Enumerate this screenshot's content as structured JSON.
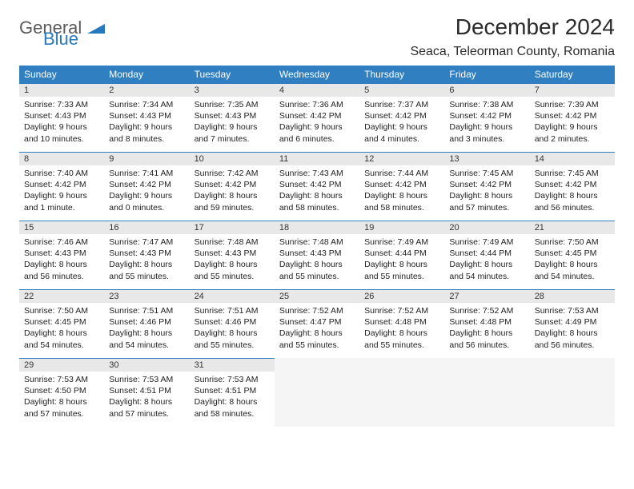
{
  "logo": {
    "part1": "General",
    "part2": "Blue"
  },
  "title": "December 2024",
  "location": "Seaca, Teleorman County, Romania",
  "colors": {
    "header_bg": "#2f7fc1",
    "header_text": "#ffffff",
    "daynum_bg": "#e8e8e8",
    "border": "#2f7fc1",
    "logo_gray": "#5a5a5a",
    "logo_blue": "#2779bd"
  },
  "weekdays": [
    "Sunday",
    "Monday",
    "Tuesday",
    "Wednesday",
    "Thursday",
    "Friday",
    "Saturday"
  ],
  "weeks": [
    [
      {
        "n": "1",
        "sr": "Sunrise: 7:33 AM",
        "ss": "Sunset: 4:43 PM",
        "dl": "Daylight: 9 hours and 10 minutes."
      },
      {
        "n": "2",
        "sr": "Sunrise: 7:34 AM",
        "ss": "Sunset: 4:43 PM",
        "dl": "Daylight: 9 hours and 8 minutes."
      },
      {
        "n": "3",
        "sr": "Sunrise: 7:35 AM",
        "ss": "Sunset: 4:43 PM",
        "dl": "Daylight: 9 hours and 7 minutes."
      },
      {
        "n": "4",
        "sr": "Sunrise: 7:36 AM",
        "ss": "Sunset: 4:42 PM",
        "dl": "Daylight: 9 hours and 6 minutes."
      },
      {
        "n": "5",
        "sr": "Sunrise: 7:37 AM",
        "ss": "Sunset: 4:42 PM",
        "dl": "Daylight: 9 hours and 4 minutes."
      },
      {
        "n": "6",
        "sr": "Sunrise: 7:38 AM",
        "ss": "Sunset: 4:42 PM",
        "dl": "Daylight: 9 hours and 3 minutes."
      },
      {
        "n": "7",
        "sr": "Sunrise: 7:39 AM",
        "ss": "Sunset: 4:42 PM",
        "dl": "Daylight: 9 hours and 2 minutes."
      }
    ],
    [
      {
        "n": "8",
        "sr": "Sunrise: 7:40 AM",
        "ss": "Sunset: 4:42 PM",
        "dl": "Daylight: 9 hours and 1 minute."
      },
      {
        "n": "9",
        "sr": "Sunrise: 7:41 AM",
        "ss": "Sunset: 4:42 PM",
        "dl": "Daylight: 9 hours and 0 minutes."
      },
      {
        "n": "10",
        "sr": "Sunrise: 7:42 AM",
        "ss": "Sunset: 4:42 PM",
        "dl": "Daylight: 8 hours and 59 minutes."
      },
      {
        "n": "11",
        "sr": "Sunrise: 7:43 AM",
        "ss": "Sunset: 4:42 PM",
        "dl": "Daylight: 8 hours and 58 minutes."
      },
      {
        "n": "12",
        "sr": "Sunrise: 7:44 AM",
        "ss": "Sunset: 4:42 PM",
        "dl": "Daylight: 8 hours and 58 minutes."
      },
      {
        "n": "13",
        "sr": "Sunrise: 7:45 AM",
        "ss": "Sunset: 4:42 PM",
        "dl": "Daylight: 8 hours and 57 minutes."
      },
      {
        "n": "14",
        "sr": "Sunrise: 7:45 AM",
        "ss": "Sunset: 4:42 PM",
        "dl": "Daylight: 8 hours and 56 minutes."
      }
    ],
    [
      {
        "n": "15",
        "sr": "Sunrise: 7:46 AM",
        "ss": "Sunset: 4:43 PM",
        "dl": "Daylight: 8 hours and 56 minutes."
      },
      {
        "n": "16",
        "sr": "Sunrise: 7:47 AM",
        "ss": "Sunset: 4:43 PM",
        "dl": "Daylight: 8 hours and 55 minutes."
      },
      {
        "n": "17",
        "sr": "Sunrise: 7:48 AM",
        "ss": "Sunset: 4:43 PM",
        "dl": "Daylight: 8 hours and 55 minutes."
      },
      {
        "n": "18",
        "sr": "Sunrise: 7:48 AM",
        "ss": "Sunset: 4:43 PM",
        "dl": "Daylight: 8 hours and 55 minutes."
      },
      {
        "n": "19",
        "sr": "Sunrise: 7:49 AM",
        "ss": "Sunset: 4:44 PM",
        "dl": "Daylight: 8 hours and 55 minutes."
      },
      {
        "n": "20",
        "sr": "Sunrise: 7:49 AM",
        "ss": "Sunset: 4:44 PM",
        "dl": "Daylight: 8 hours and 54 minutes."
      },
      {
        "n": "21",
        "sr": "Sunrise: 7:50 AM",
        "ss": "Sunset: 4:45 PM",
        "dl": "Daylight: 8 hours and 54 minutes."
      }
    ],
    [
      {
        "n": "22",
        "sr": "Sunrise: 7:50 AM",
        "ss": "Sunset: 4:45 PM",
        "dl": "Daylight: 8 hours and 54 minutes."
      },
      {
        "n": "23",
        "sr": "Sunrise: 7:51 AM",
        "ss": "Sunset: 4:46 PM",
        "dl": "Daylight: 8 hours and 54 minutes."
      },
      {
        "n": "24",
        "sr": "Sunrise: 7:51 AM",
        "ss": "Sunset: 4:46 PM",
        "dl": "Daylight: 8 hours and 55 minutes."
      },
      {
        "n": "25",
        "sr": "Sunrise: 7:52 AM",
        "ss": "Sunset: 4:47 PM",
        "dl": "Daylight: 8 hours and 55 minutes."
      },
      {
        "n": "26",
        "sr": "Sunrise: 7:52 AM",
        "ss": "Sunset: 4:48 PM",
        "dl": "Daylight: 8 hours and 55 minutes."
      },
      {
        "n": "27",
        "sr": "Sunrise: 7:52 AM",
        "ss": "Sunset: 4:48 PM",
        "dl": "Daylight: 8 hours and 56 minutes."
      },
      {
        "n": "28",
        "sr": "Sunrise: 7:53 AM",
        "ss": "Sunset: 4:49 PM",
        "dl": "Daylight: 8 hours and 56 minutes."
      }
    ],
    [
      {
        "n": "29",
        "sr": "Sunrise: 7:53 AM",
        "ss": "Sunset: 4:50 PM",
        "dl": "Daylight: 8 hours and 57 minutes."
      },
      {
        "n": "30",
        "sr": "Sunrise: 7:53 AM",
        "ss": "Sunset: 4:51 PM",
        "dl": "Daylight: 8 hours and 57 minutes."
      },
      {
        "n": "31",
        "sr": "Sunrise: 7:53 AM",
        "ss": "Sunset: 4:51 PM",
        "dl": "Daylight: 8 hours and 58 minutes."
      },
      null,
      null,
      null,
      null
    ]
  ]
}
